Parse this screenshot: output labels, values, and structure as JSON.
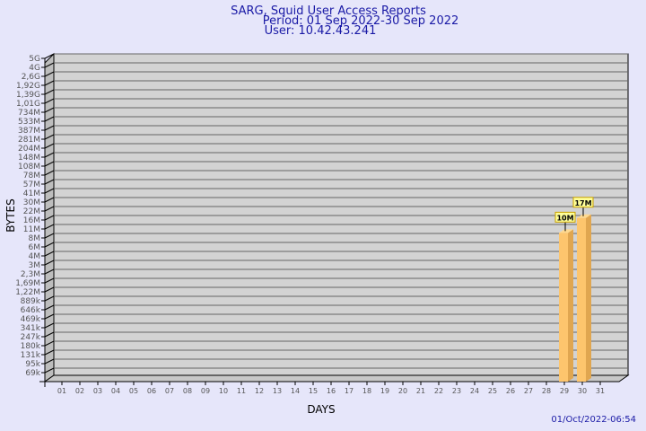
{
  "header": {
    "title": "SARG, Squid User Access Reports",
    "period": "Period: 01 Sep 2022-30 Sep 2022",
    "user": "User: 10.42.43.241"
  },
  "footer": {
    "timestamp": "01/Oct/2022-06:54"
  },
  "chart_data": {
    "type": "bar",
    "xlabel": "DAYS",
    "ylabel": "BYTES",
    "y_scale": "log",
    "grid": true,
    "y_tick_labels": [
      "5G",
      "4G",
      "2,6G",
      "1,92G",
      "1,39G",
      "1,01G",
      "734M",
      "533M",
      "387M",
      "281M",
      "204M",
      "148M",
      "108M",
      "78M",
      "57M",
      "41M",
      "30M",
      "22M",
      "16M",
      "11M",
      "8M",
      "6M",
      "4M",
      "3M",
      "2,3M",
      "1,69M",
      "1,22M",
      "889k",
      "646k",
      "469k",
      "341k",
      "247k",
      "180k",
      "131k",
      "95k",
      "69k"
    ],
    "categories": [
      "01",
      "02",
      "03",
      "04",
      "05",
      "06",
      "07",
      "08",
      "09",
      "10",
      "11",
      "12",
      "13",
      "14",
      "15",
      "16",
      "17",
      "18",
      "19",
      "20",
      "21",
      "22",
      "23",
      "24",
      "25",
      "26",
      "27",
      "28",
      "29",
      "30",
      "31"
    ],
    "bars": [
      {
        "day": "29",
        "value": 10000000,
        "label": "10M"
      },
      {
        "day": "30",
        "value": 17000000,
        "label": "17M"
      }
    ],
    "colors": {
      "bar": "#fdc56d",
      "bar_side": "#e0a650",
      "plot_bg": "#d3d3d3",
      "background": "#e6e6fa",
      "label_bg": "#ffff99"
    }
  }
}
